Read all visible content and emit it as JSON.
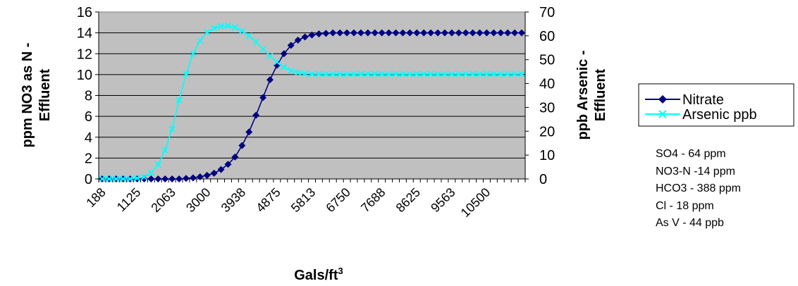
{
  "chart_data": {
    "type": "line",
    "xlabel": "Gals/ft",
    "xlabel_superscript": "3",
    "ylabel_left_line1": "ppm NO3 as N -",
    "ylabel_left_line2": "Effluent",
    "ylabel_right_line1": "ppb Arsenic -",
    "ylabel_right_line2": "Effluent",
    "x_tick_labels": [
      "188",
      "1125",
      "2063",
      "3000",
      "3938",
      "4875",
      "5813",
      "6750",
      "7688",
      "8625",
      "9563",
      "10500"
    ],
    "y_left": {
      "min": 0,
      "max": 16,
      "step": 2,
      "ticks": [
        "0",
        "2",
        "4",
        "6",
        "8",
        "10",
        "12",
        "14",
        "16"
      ]
    },
    "y_right": {
      "min": 0,
      "max": 70,
      "step": 10,
      "ticks": [
        "0",
        "10",
        "20",
        "30",
        "40",
        "50",
        "60",
        "70"
      ]
    },
    "plot_background": "#c0c0c0",
    "grid": "horizontal",
    "legend_position": "right",
    "series": [
      {
        "name": "Nitrate",
        "axis": "left",
        "color": "#000080",
        "marker": "diamond",
        "values": [
          0,
          0,
          0,
          0,
          0,
          0,
          0,
          0,
          0,
          0,
          0,
          0,
          0.05,
          0.1,
          0.2,
          0.35,
          0.55,
          0.9,
          1.4,
          2.1,
          3.2,
          4.5,
          6.1,
          7.8,
          9.5,
          10.9,
          12.0,
          12.8,
          13.3,
          13.6,
          13.8,
          13.9,
          13.95,
          14.0,
          14.0,
          14.0,
          14.0,
          14.0,
          14.0,
          14.0,
          14.0,
          14.0,
          14.0,
          14.0,
          14.0,
          14.0,
          14.0,
          14.0,
          14.0,
          14.0,
          14.0,
          14.0,
          14.0,
          14.0,
          14.0,
          14.0,
          14.0,
          14.0,
          14.0,
          14.0,
          14.0
        ]
      },
      {
        "name": "Arsenic ppb",
        "axis": "right",
        "color": "#00ffff",
        "marker": "x",
        "values": [
          0,
          0,
          0,
          0,
          0,
          0.3,
          0.8,
          2.5,
          6,
          12,
          21,
          33,
          44,
          52.5,
          58,
          61.5,
          63.2,
          64,
          64.2,
          63.5,
          62,
          60,
          57.5,
          54.5,
          51.5,
          49,
          46.8,
          45.4,
          44.6,
          44.2,
          44,
          44,
          44,
          44,
          44,
          44,
          44,
          44,
          44,
          44,
          44,
          44,
          44,
          44,
          44,
          44,
          44,
          44,
          44,
          44,
          44,
          44,
          44,
          44,
          44,
          44,
          44,
          44,
          44,
          44,
          44
        ]
      }
    ]
  },
  "notes": [
    "SO4 - 64 ppm",
    "NO3-N -14 ppm",
    "HCO3 - 388 ppm",
    "Cl - 18 ppm",
    "As V - 44 ppb"
  ]
}
